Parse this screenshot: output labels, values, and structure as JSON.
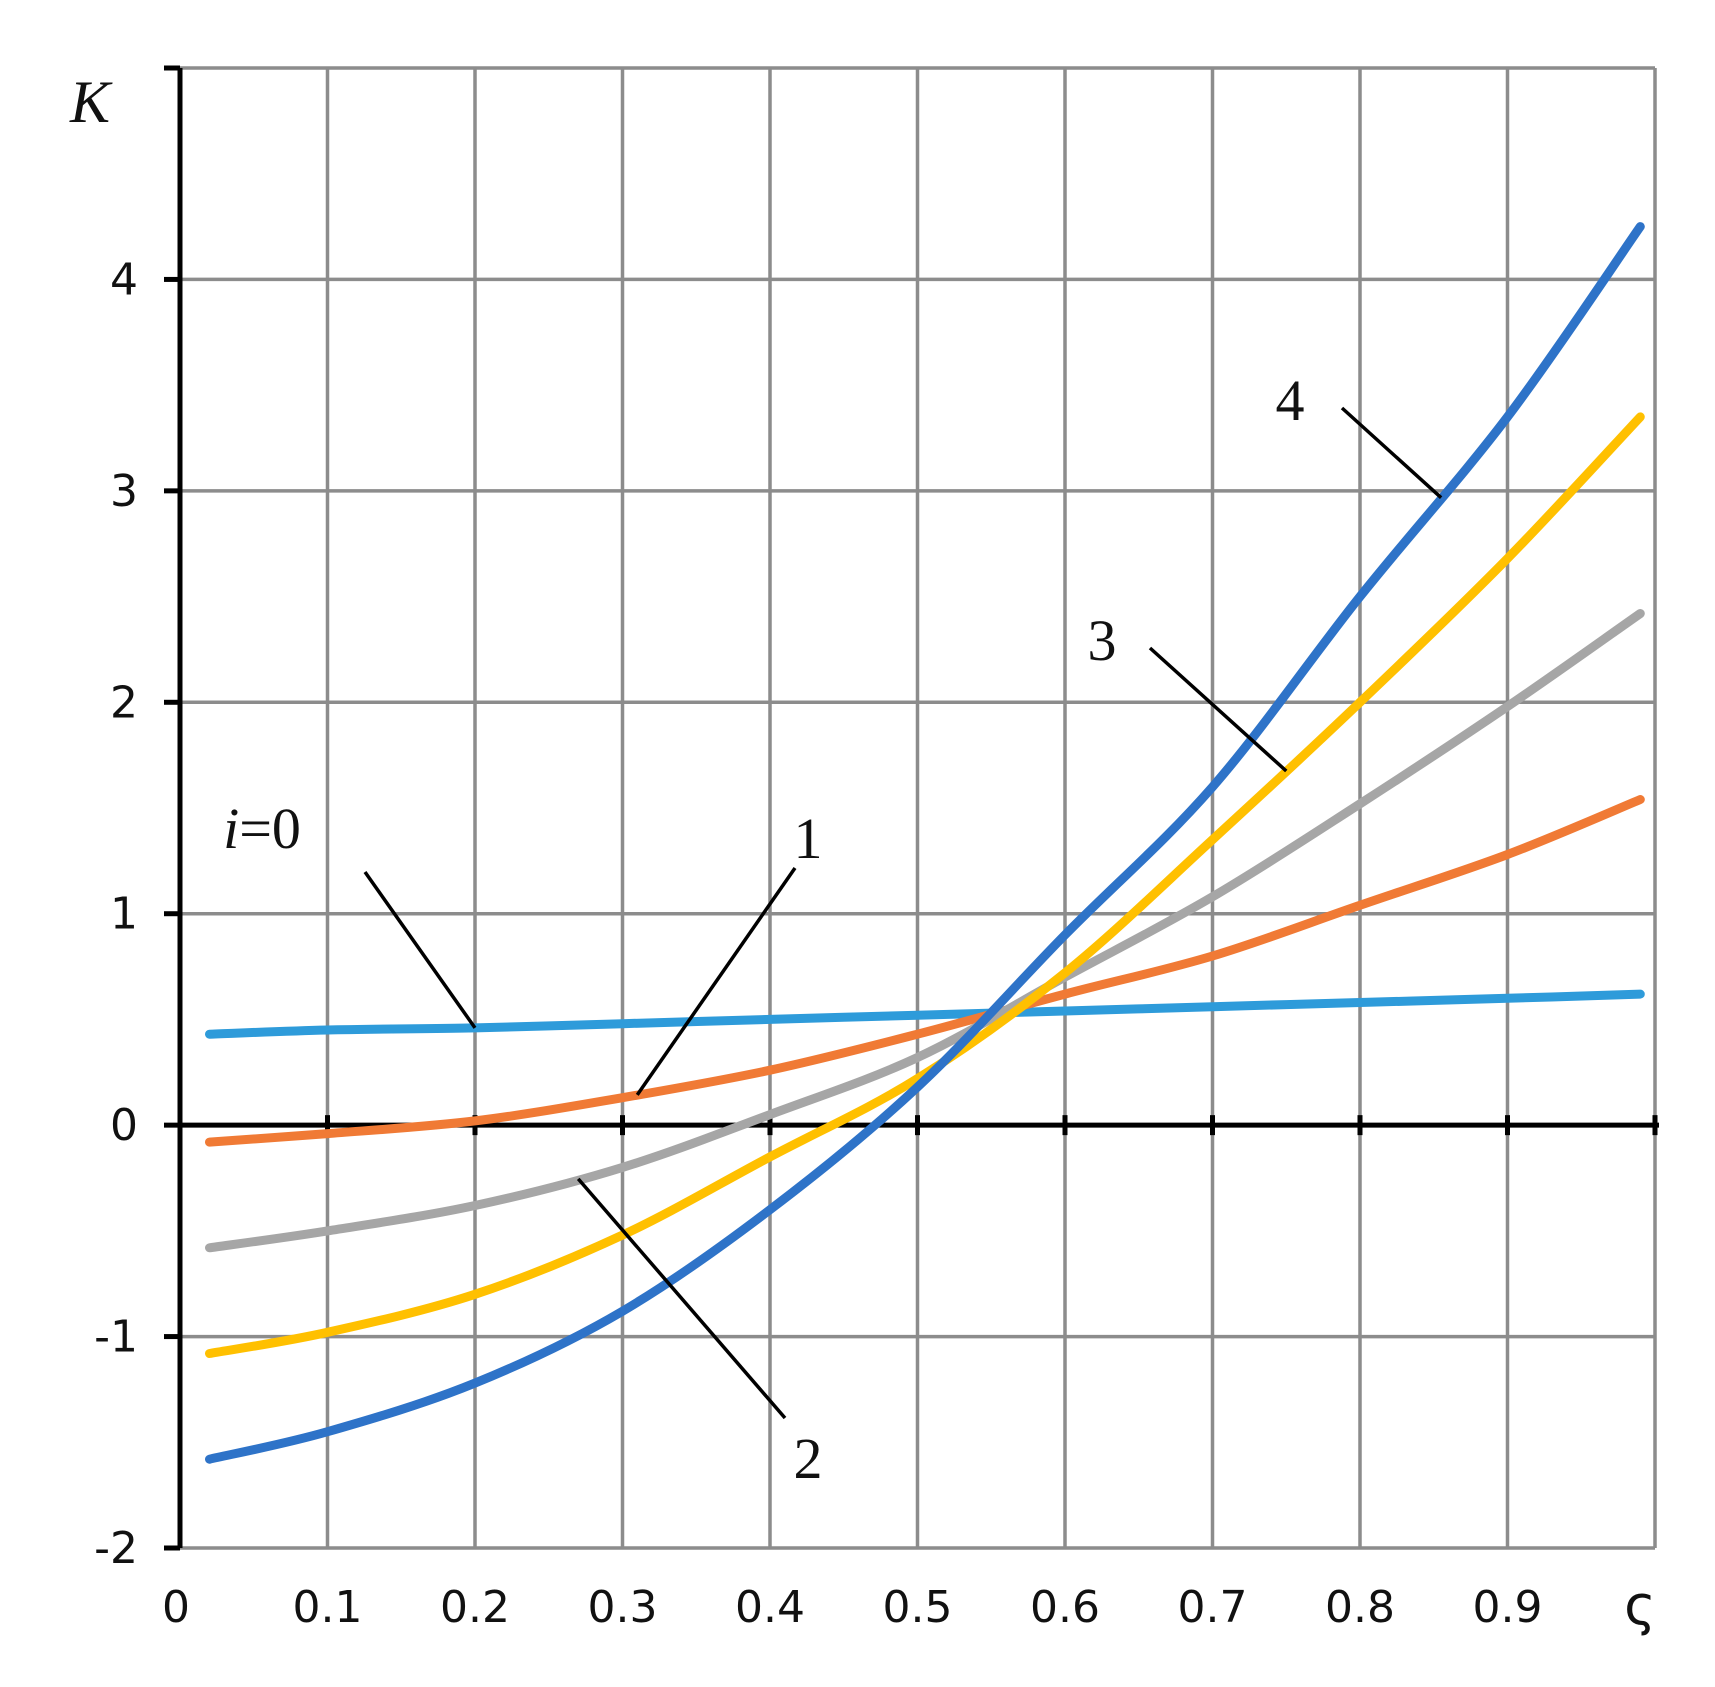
{
  "chart_data": {
    "type": "line",
    "title": "",
    "xlabel": "ς",
    "ylabel": "K",
    "xlim": [
      0,
      1
    ],
    "ylim": [
      -2,
      5
    ],
    "grid": true,
    "x_ticks": [
      0,
      0.1,
      0.2,
      0.3,
      0.4,
      0.5,
      0.6,
      0.7,
      0.8,
      0.9
    ],
    "x_tick_labels": [
      "0",
      "0.1",
      "0.2",
      "0.3",
      "0.4",
      "0.5",
      "0.6",
      "0.7",
      "0.8",
      "0.9"
    ],
    "y_ticks": [
      -2,
      -1,
      0,
      1,
      2,
      3,
      4
    ],
    "y_tick_labels": [
      "-2",
      "-1",
      "0",
      "1",
      "2",
      "3",
      "4"
    ],
    "x": [
      0.02,
      0.1,
      0.2,
      0.3,
      0.4,
      0.5,
      0.6,
      0.7,
      0.8,
      0.9,
      0.99
    ],
    "series": [
      {
        "label": "i=0",
        "color": "#2E9BDA",
        "values": [
          0.43,
          0.45,
          0.46,
          0.48,
          0.5,
          0.52,
          0.54,
          0.56,
          0.58,
          0.6,
          0.62
        ]
      },
      {
        "label": "1",
        "color": "#F07A35",
        "values": [
          -0.08,
          -0.04,
          0.02,
          0.13,
          0.26,
          0.43,
          0.62,
          0.8,
          1.04,
          1.28,
          1.54
        ]
      },
      {
        "label": "2",
        "color": "#A6A6A6",
        "values": [
          -0.58,
          -0.5,
          -0.38,
          -0.2,
          0.05,
          0.32,
          0.7,
          1.08,
          1.52,
          1.98,
          2.42
        ]
      },
      {
        "label": "3",
        "color": "#FFC000",
        "values": [
          -1.08,
          -0.98,
          -0.8,
          -0.52,
          -0.15,
          0.22,
          0.72,
          1.35,
          2.0,
          2.68,
          3.35
        ]
      },
      {
        "label": "4",
        "color": "#2E73C8",
        "values": [
          -1.58,
          -1.45,
          -1.22,
          -0.88,
          -0.4,
          0.18,
          0.9,
          1.6,
          2.5,
          3.35,
          4.25
        ]
      }
    ],
    "annotations": [
      {
        "text": "i=0",
        "series": 0
      },
      {
        "text": "1",
        "series": 1
      },
      {
        "text": "2",
        "series": 2
      },
      {
        "text": "3",
        "series": 3
      },
      {
        "text": "4",
        "series": 4
      }
    ]
  }
}
